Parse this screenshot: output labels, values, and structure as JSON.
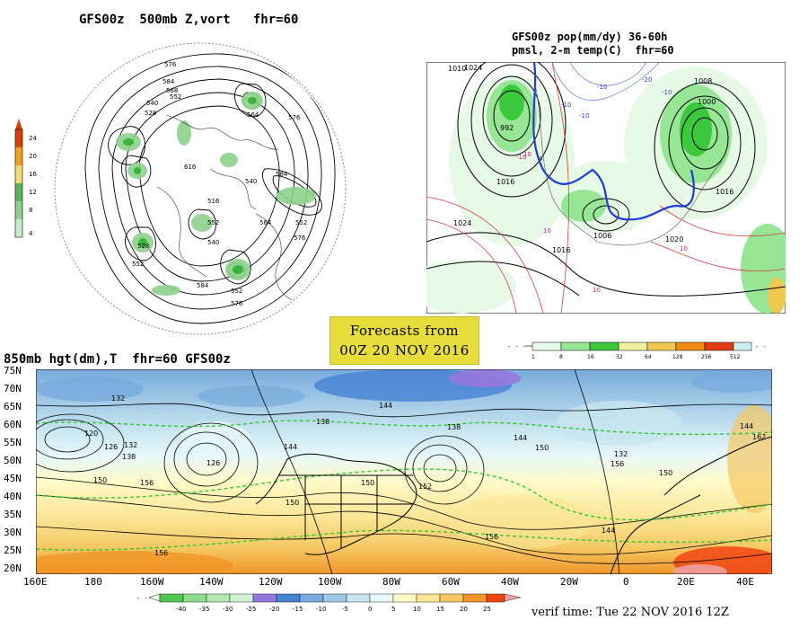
{
  "panels": {
    "polar": {
      "title": "GFS00z  500mb Z,vort   fhr=60",
      "legend": {
        "labels": [
          "24",
          "20",
          "16",
          "12",
          "8",
          "4"
        ],
        "colors": [
          "#d8400a",
          "#f0a020",
          "#f0dc78",
          "#5ab45a",
          "#8cd28c",
          "#c8ecc8",
          "#ffffff"
        ]
      },
      "contour_labels": [
        "576",
        "584",
        "568",
        "552",
        "540",
        "528",
        "564",
        "576",
        "616",
        "584",
        "540",
        "552",
        "516",
        "540",
        "552",
        "564",
        "576",
        "528",
        "552",
        "584",
        "552",
        "576"
      ]
    },
    "conus": {
      "title_line1": "GFS00z pop(mm/dy) 36-60h",
      "title_line2": "pmsl, 2-m temp(C)  fhr=60",
      "legend": {
        "labels": [
          "1",
          "8",
          "16",
          "32",
          "64",
          "128",
          "256",
          "512"
        ],
        "colors": [
          "#e6fae6",
          "#96e696",
          "#3cc83c",
          "#f0f0a0",
          "#f0c850",
          "#f08c14",
          "#e03c14",
          "#c8f0f0"
        ]
      },
      "contour_labels": [
        "1024",
        "992",
        "1016",
        "1024",
        "1008",
        "1000",
        "1016",
        "1006",
        "1020",
        "1016",
        "1010"
      ],
      "temp_labels": [
        "-10",
        "-10",
        "-20",
        "-10",
        "-10",
        "0",
        "10",
        "10",
        "10",
        "-10",
        "10"
      ]
    },
    "forecasts_box": {
      "line1": "Forecasts from",
      "line2": "00Z 20 NOV 2016"
    },
    "h850": {
      "title": "850mb hgt(dm),T  fhr=60 GFS00z",
      "y_ticks": [
        "75N",
        "70N",
        "65N",
        "60N",
        "55N",
        "50N",
        "45N",
        "40N",
        "35N",
        "30N",
        "25N",
        "20N"
      ],
      "x_ticks": [
        "160E",
        "180",
        "160W",
        "140W",
        "120W",
        "100W",
        "80W",
        "60W",
        "40W",
        "20W",
        "0",
        "20E",
        "40E"
      ],
      "contour_labels": [
        "132",
        "120",
        "126",
        "132",
        "138",
        "150",
        "156",
        "126",
        "156",
        "144",
        "138",
        "150",
        "144",
        "150",
        "152",
        "138",
        "144",
        "132",
        "150",
        "156",
        "144",
        "156",
        "150",
        "144",
        "162"
      ],
      "temp_legend": {
        "labels": [
          "-40",
          "-35",
          "-30",
          "-25",
          "-20",
          "-15",
          "-10",
          "-5",
          "0",
          "5",
          "10",
          "15",
          "20",
          "25"
        ],
        "colors": [
          "#50c850",
          "#8cdc8c",
          "#b4e6b4",
          "#d2f0d2",
          "#9678dc",
          "#4682d2",
          "#78aadc",
          "#a0c8e6",
          "#c8e6f0",
          "#e6f8fa",
          "#fffac8",
          "#fae696",
          "#f5c864",
          "#f09628",
          "#f04614",
          "#f0a0a0"
        ]
      },
      "verif_time": "verif time: Tue 22 NOV 2016 12Z"
    }
  }
}
